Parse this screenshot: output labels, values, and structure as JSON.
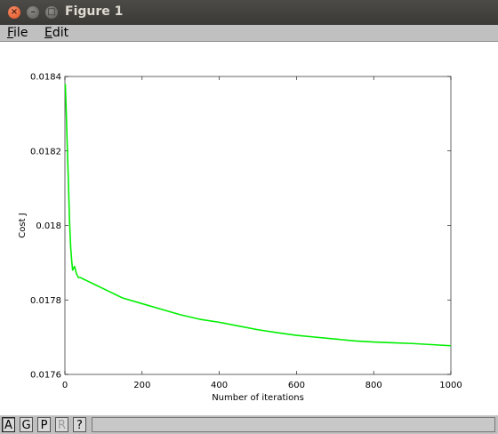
{
  "window": {
    "title": "Figure 1"
  },
  "menubar": {
    "file": {
      "accel": "F",
      "rest": "ile"
    },
    "edit": {
      "accel": "E",
      "rest": "dit"
    }
  },
  "toolbar": {
    "buttons": [
      {
        "label": "A",
        "state": "active"
      },
      {
        "label": "G",
        "state": "normal"
      },
      {
        "label": "P",
        "state": "normal"
      },
      {
        "label": "R",
        "state": "disabled"
      },
      {
        "label": "?",
        "state": "normal"
      }
    ]
  },
  "chart_data": {
    "type": "line",
    "xlabel": "Number of iterations",
    "ylabel": "Cost J",
    "xlim": [
      0,
      1000
    ],
    "ylim": [
      0.0176,
      0.0184
    ],
    "xticks": [
      0,
      200,
      400,
      600,
      800,
      1000
    ],
    "yticks": [
      0.0176,
      0.0178,
      0.018,
      0.0182,
      0.0184
    ],
    "xtick_labels": [
      "0",
      "200",
      "400",
      "600",
      "800",
      "1000"
    ],
    "ytick_labels": [
      "0.0176",
      "0.0178",
      "0.018",
      "0.0182",
      "0.0184"
    ],
    "grid": false,
    "series": [
      {
        "color": "#00ee00",
        "x": [
          1,
          3,
          5,
          8,
          10,
          12,
          15,
          18,
          20,
          25,
          30,
          35,
          40,
          50,
          60,
          80,
          100,
          150,
          200,
          250,
          300,
          350,
          400,
          450,
          500,
          550,
          600,
          650,
          700,
          750,
          800,
          850,
          900,
          950,
          1000
        ],
        "y": [
          0.01838,
          0.01832,
          0.01825,
          0.01815,
          0.01808,
          0.01801,
          0.01794,
          0.0179,
          0.01788,
          0.01789,
          0.01787,
          0.01786,
          0.01786,
          0.017855,
          0.01785,
          0.01784,
          0.01783,
          0.017805,
          0.01779,
          0.017775,
          0.01776,
          0.017748,
          0.01774,
          0.01773,
          0.01772,
          0.017712,
          0.017705,
          0.0177,
          0.017695,
          0.01769,
          0.017687,
          0.017685,
          0.017683,
          0.01768,
          0.017677
        ]
      }
    ]
  }
}
